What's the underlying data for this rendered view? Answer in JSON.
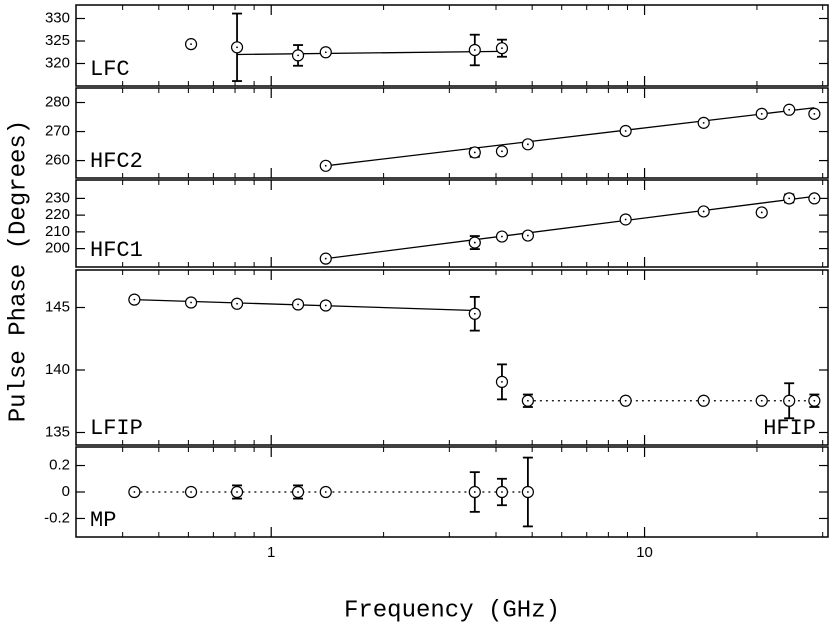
{
  "chart_data": [
    {
      "type": "scatter",
      "log_x": true,
      "xlim": [
        0.3,
        31
      ],
      "xticks": [
        1,
        10
      ],
      "ylim": [
        315,
        333
      ],
      "yticks": [
        320,
        325,
        330
      ],
      "ylabel": "Pulse Phase (Degrees)",
      "series": [
        {
          "label": "LFC",
          "label_corner": "lower left",
          "color": "#000000",
          "x": [
            0.61,
            0.81,
            1.18,
            1.4,
            3.51,
            4.15
          ],
          "values": [
            324.3,
            323.6,
            321.8,
            322.5,
            323.0,
            323.4
          ],
          "errors": [
            null,
            7.5,
            2.3,
            null,
            3.4,
            1.9
          ],
          "fit": {
            "x": [
              0.81,
              4.15
            ],
            "values": [
              322.0,
              322.7
            ],
            "dash": false
          }
        }
      ]
    },
    {
      "type": "scatter",
      "log_x": true,
      "xlim": [
        0.3,
        31
      ],
      "xticks": [
        1,
        10
      ],
      "ylim": [
        254,
        285
      ],
      "yticks": [
        260,
        270,
        280
      ],
      "series": [
        {
          "label": "HFC2",
          "label_corner": "lower left",
          "color": "#000000",
          "x": [
            1.4,
            3.51,
            4.15,
            4.87,
            8.9,
            14.4,
            20.6,
            24.4,
            28.5
          ],
          "values": [
            258.2,
            262.8,
            263.2,
            265.6,
            270.2,
            273.0,
            276.1,
            277.5,
            276.1
          ],
          "errors": [
            null,
            1.5,
            null,
            null,
            null,
            null,
            null,
            null,
            null
          ],
          "fit": {
            "x": [
              1.4,
              28.5
            ],
            "values": [
              258.2,
              278.2
            ],
            "dash": false
          }
        }
      ]
    },
    {
      "type": "scatter",
      "log_x": true,
      "xlim": [
        0.3,
        31
      ],
      "xticks": [
        1,
        10
      ],
      "ylim": [
        189,
        241
      ],
      "yticks": [
        200,
        210,
        220,
        230
      ],
      "series": [
        {
          "label": "HFC1",
          "label_corner": "lower left",
          "color": "#000000",
          "x": [
            1.4,
            3.51,
            4.15,
            4.87,
            8.9,
            14.4,
            20.6,
            24.4,
            28.5
          ],
          "values": [
            194.0,
            203.6,
            207.2,
            207.8,
            217.4,
            222.2,
            221.6,
            230.0,
            230.0
          ],
          "errors": [
            null,
            3.9,
            null,
            null,
            null,
            null,
            null,
            2.4,
            null
          ],
          "fit": {
            "x": [
              1.4,
              28.5
            ],
            "values": [
              194.0,
              231.2
            ],
            "dash": false
          }
        }
      ]
    },
    {
      "type": "scatter",
      "log_x": true,
      "xlim": [
        0.3,
        31
      ],
      "xticks": [
        1,
        10
      ],
      "ylim": [
        134,
        148
      ],
      "yticks": [
        135,
        140,
        145
      ],
      "series": [
        {
          "label": "LFIP",
          "label_corner": "lower left",
          "color": "#000000",
          "x": [
            0.43,
            0.61,
            0.81,
            1.18,
            1.4,
            3.51
          ],
          "values": [
            145.63,
            145.4,
            145.3,
            145.24,
            145.16,
            144.5
          ],
          "errors": [
            null,
            null,
            null,
            null,
            null,
            1.35
          ],
          "fit": {
            "x": [
              0.43,
              3.51
            ],
            "values": [
              145.63,
              144.76
            ],
            "dash": false
          }
        },
        {
          "label": "HFIP",
          "label_corner": "lower right",
          "color": "#000000",
          "x": [
            4.15,
            4.87,
            8.9,
            14.4,
            20.6,
            24.4,
            28.5
          ],
          "values": [
            139.05,
            137.54,
            137.54,
            137.54,
            137.54,
            137.54,
            137.54
          ],
          "errors": [
            1.4,
            0.5,
            null,
            null,
            null,
            1.4,
            0.5
          ],
          "fit": {
            "x": [
              4.87,
              28.5
            ],
            "values": [
              137.54,
              137.54
            ],
            "dash": true
          }
        }
      ]
    },
    {
      "type": "scatter",
      "log_x": true,
      "xlim": [
        0.3,
        31
      ],
      "xticks": [
        1,
        10
      ],
      "ylim": [
        -0.34,
        0.34
      ],
      "yticks": [
        -0.2,
        0,
        0.2
      ],
      "xlabel": "Frequency (GHz)",
      "series": [
        {
          "label": "MP",
          "label_corner": "lower left",
          "color": "#000000",
          "x": [
            0.43,
            0.61,
            0.81,
            1.18,
            1.4,
            3.51,
            4.15,
            4.87
          ],
          "values": [
            0,
            0,
            0,
            0,
            0,
            0,
            0,
            0
          ],
          "errors": [
            null,
            null,
            0.05,
            0.05,
            null,
            0.15,
            0.1,
            0.26
          ],
          "fit": {
            "x": [
              0.43,
              4.87
            ],
            "values": [
              0,
              0
            ],
            "dash": true
          }
        }
      ]
    }
  ]
}
